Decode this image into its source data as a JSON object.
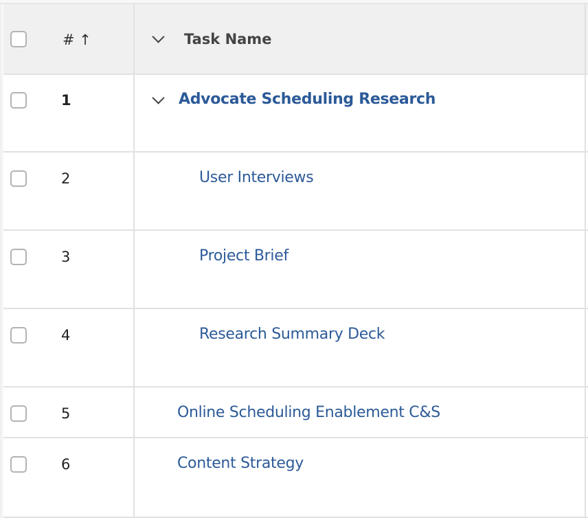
{
  "header": {
    "number_label": "# ↑",
    "sort_icon": "arrow-up-icon",
    "task_name_label": "Task Name"
  },
  "colors": {
    "link": "#2c5a98",
    "header_bg": "#f0f0f0",
    "border": "#e1e1e1"
  },
  "rows": [
    {
      "number": "1",
      "name": "Advocate Scheduling Research",
      "level": 0,
      "expanded": true,
      "bold": true
    },
    {
      "number": "2",
      "name": "User Interviews",
      "level": 1
    },
    {
      "number": "3",
      "name": "Project Brief",
      "level": 1
    },
    {
      "number": "4",
      "name": "Research Summary Deck",
      "level": 1
    },
    {
      "number": "5",
      "name": "Online Scheduling Enablement C&S",
      "level": 0
    },
    {
      "number": "6",
      "name": "Content Strategy",
      "level": 0
    }
  ]
}
